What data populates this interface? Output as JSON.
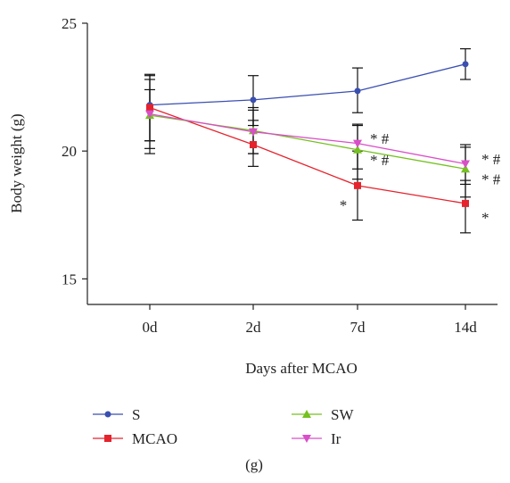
{
  "chart_data": {
    "type": "line",
    "categories": [
      "0d",
      "2d",
      "7d",
      "14d"
    ],
    "xlabel": "Days after MCAO",
    "ylabel": "Body weight (g)",
    "ylim": [
      14,
      25
    ],
    "yticks": [
      15,
      20,
      25
    ],
    "series": [
      {
        "name": "S",
        "color": "#3a4fb0",
        "marker": "circle",
        "values": [
          21.8,
          22.0,
          22.35,
          23.4
        ],
        "err_low": [
          19.9,
          21.0,
          21.5,
          22.8
        ],
        "err_high": [
          23.0,
          22.95,
          23.25,
          24.0
        ]
      },
      {
        "name": "MCAO",
        "color": "#e5232d",
        "marker": "square",
        "values": [
          21.7,
          20.25,
          18.65,
          17.95
        ],
        "err_low": [
          20.4,
          19.4,
          17.3,
          16.8
        ],
        "err_high": [
          22.95,
          21.2,
          20.0,
          18.85
        ]
      },
      {
        "name": "SW",
        "color": "#74c11f",
        "marker": "triangle-up",
        "values": [
          21.4,
          20.8,
          20.05,
          19.3
        ],
        "err_low": [
          20.4,
          19.9,
          18.9,
          18.2
        ],
        "err_high": [
          22.4,
          21.7,
          21.0,
          20.15
        ]
      },
      {
        "name": "Ir",
        "color": "#d94fc8",
        "marker": "triangle-down",
        "values": [
          21.45,
          20.75,
          20.3,
          19.5
        ],
        "err_low": [
          20.1,
          19.9,
          19.3,
          18.7
        ],
        "err_high": [
          22.8,
          21.6,
          21.05,
          20.25
        ]
      }
    ],
    "annotations": [
      {
        "text": "* #",
        "category": "7d",
        "y": 20.5
      },
      {
        "text": "* #",
        "category": "7d",
        "y": 19.65
      },
      {
        "text": "*",
        "category": "7d",
        "y": 17.9
      },
      {
        "text": "* #",
        "category": "14d",
        "y": 19.7
      },
      {
        "text": "* #",
        "category": "14d",
        "y": 18.9
      },
      {
        "text": "*",
        "category": "14d",
        "y": 17.4
      }
    ],
    "legend": {
      "placement": "bottom",
      "entries": [
        "S",
        "SW",
        "MCAO",
        "Ir"
      ]
    },
    "panel_label": "(g)"
  }
}
